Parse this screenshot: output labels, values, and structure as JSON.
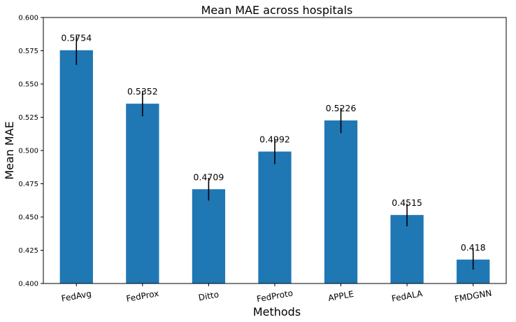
{
  "chart_data": {
    "type": "bar",
    "title": "Mean MAE across hospitals",
    "xlabel": "Methods",
    "ylabel": "Mean MAE",
    "ylim": [
      0.4,
      0.6
    ],
    "yticks": [
      "0.400",
      "0.425",
      "0.450",
      "0.475",
      "0.500",
      "0.525",
      "0.550",
      "0.575",
      "0.600"
    ],
    "categories": [
      "FedAvg",
      "FedProx",
      "Ditto",
      "FedProto",
      "APPLE",
      "FedALA",
      "FMDGNN"
    ],
    "values": [
      0.5754,
      0.5352,
      0.4709,
      0.4992,
      0.5226,
      0.4515,
      0.418
    ],
    "value_labels": [
      "0.5754",
      "0.5352",
      "0.4709",
      "0.4992",
      "0.5226",
      "0.4515",
      "0.418"
    ],
    "errors": [
      0.011,
      0.0095,
      0.0085,
      0.0095,
      0.0095,
      0.0085,
      0.0075
    ],
    "bar_color": "#1f77b4",
    "error_color": "#000000",
    "grid": false,
    "legend": "none"
  }
}
